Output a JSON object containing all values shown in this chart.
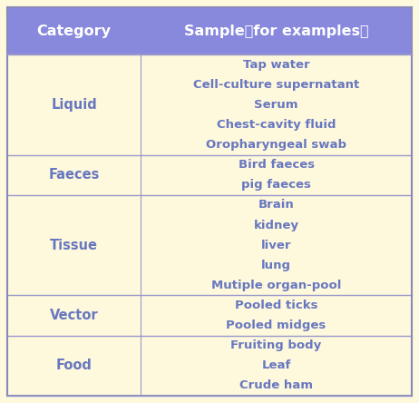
{
  "header": [
    "Category",
    "Sample（for examples）"
  ],
  "rows": [
    {
      "category": "Liquid",
      "samples": [
        "Tap water",
        "Cell-culture supernatant",
        "Serum",
        "Chest-cavity fluid",
        "Oropharyngeal swab"
      ]
    },
    {
      "category": "Faeces",
      "samples": [
        "Bird faeces",
        "pig faeces"
      ]
    },
    {
      "category": "Tissue",
      "samples": [
        "Brain",
        "kidney",
        "liver",
        "lung",
        "Mutiple organ-pool"
      ]
    },
    {
      "category": "Vector",
      "samples": [
        "Pooled ticks",
        "Pooled midges"
      ]
    },
    {
      "category": "Food",
      "samples": [
        "Fruiting body",
        "Leaf",
        "Crude ham"
      ]
    }
  ],
  "header_bg": "#8888dd",
  "header_text_color": "#ffffff",
  "row_bg": "#fef8dc",
  "row_text_color": "#6878c0",
  "border_color": "#9999cc",
  "outer_border_color": "#8888bb",
  "header_fontsize": 11.5,
  "cat_fontsize": 10.5,
  "sample_fontsize": 9.5,
  "fig_bg": "#fef8dc",
  "col_split": 0.33
}
